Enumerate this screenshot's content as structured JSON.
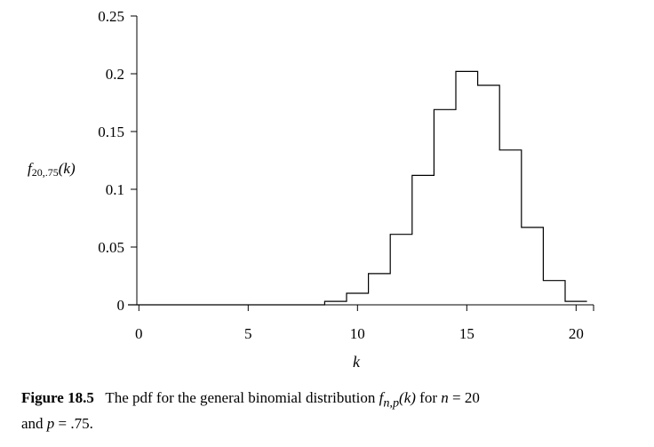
{
  "chart_data": {
    "type": "histogram",
    "x": [
      0,
      1,
      2,
      3,
      4,
      5,
      6,
      7,
      8,
      9,
      10,
      11,
      12,
      13,
      14,
      15,
      16,
      17,
      18,
      19,
      20
    ],
    "values": [
      0,
      0,
      0,
      0,
      0,
      0,
      0,
      0,
      0,
      0.003,
      0.01,
      0.027,
      0.061,
      0.112,
      0.169,
      0.202,
      0.19,
      0.134,
      0.067,
      0.021,
      0.003
    ],
    "xlim": [
      -0.5,
      20.8
    ],
    "ylim": [
      0,
      0.25
    ],
    "xticks": [
      0,
      5,
      10,
      15,
      20
    ],
    "xtick_labels": [
      "0",
      "5",
      "10",
      "15",
      "20"
    ],
    "yticks": [
      0,
      0.05,
      0.1,
      0.15,
      0.2,
      0.25
    ],
    "ytick_labels": [
      "0",
      "0.05",
      "0.1",
      "0.15",
      "0.2",
      "0.25"
    ],
    "xlabel": "k",
    "ylabel": {
      "main": "f",
      "sub": "20,.75",
      "arg": "(k)"
    },
    "grid": false
  },
  "caption": {
    "figure_label": "Figure 18.5",
    "text_1": "The pdf for the general binomial distribution",
    "formula": "f",
    "formula_sub": "n,p",
    "formula_arg": "(k)",
    "text_2": "for",
    "n_var": "n",
    "n_eq": "= 20",
    "text_3": "and",
    "p_var": "p",
    "p_eq": "= .75."
  }
}
